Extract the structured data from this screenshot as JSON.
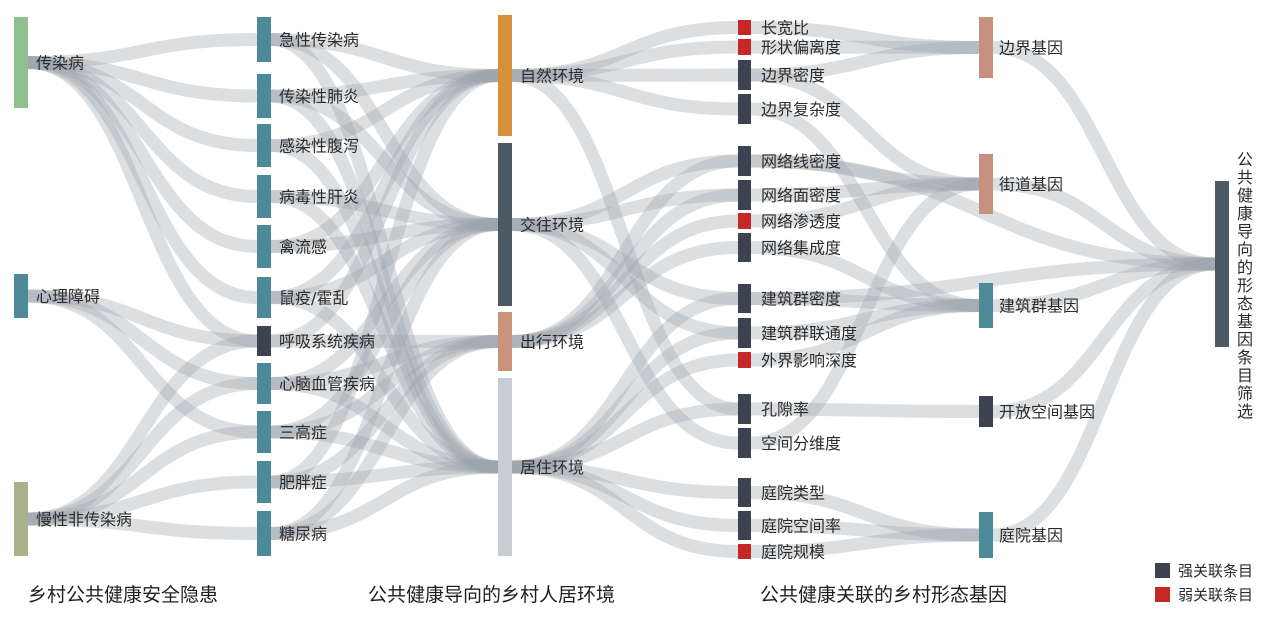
{
  "colors": {
    "link": "#9aa3ab",
    "l1_infectious": "#8fc08f",
    "l1_other": "#4d8a99",
    "l1_chronic": "#a9b28a",
    "l2": "#4d8a99",
    "l2_dark": "#3b4350",
    "l3_nature": "#d6913a",
    "l3_social": "#4b5964",
    "l3_travel": "#c8937a",
    "l3_living": "#c9cdd3",
    "strong": "#3b4350",
    "weak": "#c62828",
    "l5_brown": "#c6917e",
    "l5_teal": "#4d8a99",
    "l5_dark": "#3b4350",
    "final": "#4b5964"
  },
  "columns": {
    "c1": "乡村公共健康安全隐患",
    "c2": "公共健康导向的乡村人居环境",
    "c3": "公共健康关联的乡村形态基因"
  },
  "level1": [
    {
      "label": "传染病",
      "color": "l1_infectious"
    },
    {
      "label": "心理障碍",
      "color": "l1_other"
    },
    {
      "label": "慢性非传染病",
      "color": "l1_chronic"
    }
  ],
  "level2": [
    {
      "label": "急性传染病",
      "color": "l2"
    },
    {
      "label": "传染性肺炎",
      "color": "l2"
    },
    {
      "label": "感染性腹泻",
      "color": "l2"
    },
    {
      "label": "病毒性肝炎",
      "color": "l2"
    },
    {
      "label": "禽流感",
      "color": "l2"
    },
    {
      "label": "鼠疫/霍乱",
      "color": "l2"
    },
    {
      "label": "呼吸系统疾病",
      "color": "l2_dark"
    },
    {
      "label": "心脑血管疾病",
      "color": "l2"
    },
    {
      "label": "三高症",
      "color": "l2"
    },
    {
      "label": "肥胖症",
      "color": "l2"
    },
    {
      "label": "糖尿病",
      "color": "l2"
    }
  ],
  "level3": [
    {
      "label": "自然环境",
      "color": "l3_nature"
    },
    {
      "label": "交往环境",
      "color": "l3_social"
    },
    {
      "label": "出行环境",
      "color": "l3_travel"
    },
    {
      "label": "居住环境",
      "color": "l3_living"
    }
  ],
  "level4": [
    {
      "label": "长宽比",
      "type": "weak"
    },
    {
      "label": "形状偏离度",
      "type": "weak"
    },
    {
      "label": "边界密度",
      "type": "strong"
    },
    {
      "label": "边界复杂度",
      "type": "strong"
    },
    {
      "label": "网络线密度",
      "type": "strong"
    },
    {
      "label": "网络面密度",
      "type": "strong"
    },
    {
      "label": "网络渗透度",
      "type": "weak"
    },
    {
      "label": "网络集成度",
      "type": "strong"
    },
    {
      "label": "建筑群密度",
      "type": "strong"
    },
    {
      "label": "建筑群联通度",
      "type": "strong"
    },
    {
      "label": "外界影响深度",
      "type": "weak"
    },
    {
      "label": "孔隙率",
      "type": "strong"
    },
    {
      "label": "空间分维度",
      "type": "strong"
    },
    {
      "label": "庭院类型",
      "type": "strong"
    },
    {
      "label": "庭院空间率",
      "type": "strong"
    },
    {
      "label": "庭院规模",
      "type": "weak"
    }
  ],
  "level5": [
    {
      "label": "边界基因",
      "color": "l5_brown"
    },
    {
      "label": "街道基因",
      "color": "l5_brown"
    },
    {
      "label": "建筑群基因",
      "color": "l5_teal"
    },
    {
      "label": "开放空间基因",
      "color": "l5_dark"
    },
    {
      "label": "庭院基因",
      "color": "l5_teal"
    }
  ],
  "final": {
    "label": "公共健康导向的形态基因条目筛选",
    "color": "final"
  },
  "legend": [
    {
      "label": "强关联条目",
      "type": "strong"
    },
    {
      "label": "弱关联条目",
      "type": "weak"
    }
  ],
  "links": [
    [
      "l1",
      0,
      "l2",
      0
    ],
    [
      "l1",
      0,
      "l2",
      1
    ],
    [
      "l1",
      0,
      "l2",
      2
    ],
    [
      "l1",
      0,
      "l2",
      3
    ],
    [
      "l1",
      0,
      "l2",
      4
    ],
    [
      "l1",
      0,
      "l2",
      5
    ],
    [
      "l1",
      0,
      "l2",
      6
    ],
    [
      "l1",
      1,
      "l2",
      7
    ],
    [
      "l1",
      1,
      "l2",
      6
    ],
    [
      "l1",
      1,
      "l2",
      8
    ],
    [
      "l1",
      2,
      "l2",
      7
    ],
    [
      "l1",
      2,
      "l2",
      8
    ],
    [
      "l1",
      2,
      "l2",
      9
    ],
    [
      "l1",
      2,
      "l2",
      10
    ],
    [
      "l1",
      2,
      "l2",
      6
    ],
    [
      "l2",
      0,
      "l3",
      0
    ],
    [
      "l2",
      0,
      "l3",
      1
    ],
    [
      "l2",
      0,
      "l3",
      3
    ],
    [
      "l2",
      1,
      "l3",
      0
    ],
    [
      "l2",
      1,
      "l3",
      1
    ],
    [
      "l2",
      1,
      "l3",
      3
    ],
    [
      "l2",
      2,
      "l3",
      0
    ],
    [
      "l2",
      2,
      "l3",
      3
    ],
    [
      "l2",
      3,
      "l3",
      1
    ],
    [
      "l2",
      3,
      "l3",
      3
    ],
    [
      "l2",
      4,
      "l3",
      0
    ],
    [
      "l2",
      4,
      "l3",
      1
    ],
    [
      "l2",
      5,
      "l3",
      0
    ],
    [
      "l2",
      5,
      "l3",
      1
    ],
    [
      "l2",
      5,
      "l3",
      3
    ],
    [
      "l2",
      6,
      "l3",
      0
    ],
    [
      "l2",
      6,
      "l3",
      2
    ],
    [
      "l2",
      7,
      "l3",
      1
    ],
    [
      "l2",
      7,
      "l3",
      2
    ],
    [
      "l2",
      7,
      "l3",
      3
    ],
    [
      "l2",
      8,
      "l3",
      1
    ],
    [
      "l2",
      8,
      "l3",
      2
    ],
    [
      "l2",
      8,
      "l3",
      3
    ],
    [
      "l2",
      9,
      "l3",
      0
    ],
    [
      "l2",
      9,
      "l3",
      2
    ],
    [
      "l2",
      9,
      "l3",
      3
    ],
    [
      "l2",
      10,
      "l3",
      1
    ],
    [
      "l2",
      10,
      "l3",
      2
    ],
    [
      "l2",
      10,
      "l3",
      3
    ],
    [
      "l3",
      0,
      "l4",
      0
    ],
    [
      "l3",
      0,
      "l4",
      1
    ],
    [
      "l3",
      0,
      "l4",
      2
    ],
    [
      "l3",
      0,
      "l4",
      3
    ],
    [
      "l3",
      0,
      "l4",
      11
    ],
    [
      "l3",
      1,
      "l4",
      4
    ],
    [
      "l3",
      1,
      "l4",
      5
    ],
    [
      "l3",
      1,
      "l4",
      8
    ],
    [
      "l3",
      1,
      "l4",
      9
    ],
    [
      "l3",
      1,
      "l4",
      12
    ],
    [
      "l3",
      2,
      "l4",
      4
    ],
    [
      "l3",
      2,
      "l4",
      5
    ],
    [
      "l3",
      2,
      "l4",
      6
    ],
    [
      "l3",
      2,
      "l4",
      7
    ],
    [
      "l3",
      3,
      "l4",
      8
    ],
    [
      "l3",
      3,
      "l4",
      9
    ],
    [
      "l3",
      3,
      "l4",
      10
    ],
    [
      "l3",
      3,
      "l4",
      13
    ],
    [
      "l3",
      3,
      "l4",
      14
    ],
    [
      "l3",
      3,
      "l4",
      15
    ],
    [
      "l3",
      3,
      "l4",
      11
    ],
    [
      "l4",
      0,
      "l5",
      0
    ],
    [
      "l4",
      1,
      "l5",
      0
    ],
    [
      "l4",
      2,
      "l5",
      0
    ],
    [
      "l4",
      3,
      "l5",
      2
    ],
    [
      "l4",
      4,
      "l5",
      1
    ],
    [
      "l4",
      5,
      "l5",
      1
    ],
    [
      "l4",
      6,
      "l5",
      1
    ],
    [
      "l4",
      7,
      "l5",
      2
    ],
    [
      "l4",
      8,
      "l5",
      2
    ],
    [
      "l4",
      9,
      "l5",
      2
    ],
    [
      "l4",
      10,
      "l5",
      2
    ],
    [
      "l4",
      11,
      "l5",
      3
    ],
    [
      "l4",
      12,
      "l5",
      1
    ],
    [
      "l4",
      13,
      "l5",
      4
    ],
    [
      "l4",
      14,
      "l5",
      4
    ],
    [
      "l4",
      15,
      "l5",
      4
    ],
    [
      "l5",
      0,
      "fin",
      0
    ],
    [
      "l5",
      1,
      "fin",
      0
    ],
    [
      "l5",
      2,
      "fin",
      0
    ],
    [
      "l5",
      3,
      "fin",
      0
    ],
    [
      "l5",
      4,
      "fin",
      0
    ],
    [
      "l4",
      2,
      "l5",
      1
    ],
    [
      "l4",
      8,
      "fin",
      0
    ],
    [
      "l4",
      4,
      "fin",
      0
    ]
  ]
}
